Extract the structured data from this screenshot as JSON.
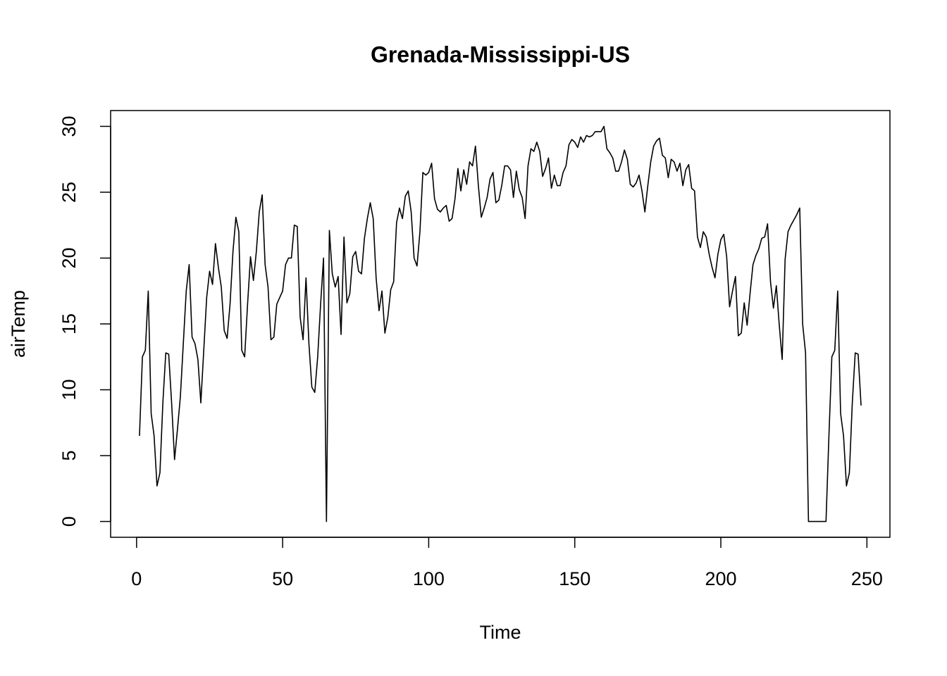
{
  "chart_data": {
    "type": "line",
    "title": "Grenada-Mississippi-US",
    "x_label": "Time",
    "y_label": "airTemp",
    "x": [
      1,
      2,
      3,
      4,
      5,
      6,
      7,
      8,
      9,
      10,
      11,
      12,
      13,
      14,
      15,
      16,
      17,
      18,
      19,
      20,
      21,
      22,
      23,
      24,
      25,
      26,
      27,
      28,
      29,
      30,
      31,
      32,
      33,
      34,
      35,
      36,
      37,
      38,
      39,
      40,
      41,
      42,
      43,
      44,
      45,
      46,
      47,
      48,
      49,
      50,
      51,
      52,
      53,
      54,
      55,
      56,
      57,
      58,
      59,
      60,
      61,
      62,
      63,
      64,
      65,
      66,
      67,
      68,
      69,
      70,
      71,
      72,
      73,
      74,
      75,
      76,
      77,
      78,
      79,
      80,
      81,
      82,
      83,
      84,
      85,
      86,
      87,
      88,
      89,
      90,
      91,
      92,
      93,
      94,
      95,
      96,
      97,
      98,
      99,
      100,
      101,
      102,
      103,
      104,
      105,
      106,
      107,
      108,
      109,
      110,
      111,
      112,
      113,
      114,
      115,
      116,
      117,
      118,
      119,
      120,
      121,
      122,
      123,
      124,
      125,
      126,
      127,
      128,
      129,
      130,
      131,
      132,
      133,
      134,
      135,
      136,
      137,
      138,
      139,
      140,
      141,
      142,
      143,
      144,
      145,
      146,
      147,
      148,
      149,
      150,
      151,
      152,
      153,
      154,
      155,
      156,
      157,
      158,
      159,
      160,
      161,
      162,
      163,
      164,
      165,
      166,
      167,
      168,
      169,
      170,
      171,
      172,
      173,
      174,
      175,
      176,
      177,
      178,
      179,
      180,
      181,
      182,
      183,
      184,
      185,
      186,
      187,
      188,
      189,
      190,
      191,
      192,
      193,
      194,
      195,
      196,
      197,
      198,
      199,
      200,
      201,
      202,
      203,
      204,
      205,
      206,
      207,
      208,
      209,
      210,
      211,
      212,
      213,
      214,
      215,
      216,
      217,
      218,
      219,
      220,
      221,
      222,
      223,
      224,
      225,
      226,
      227,
      228,
      229,
      230,
      231,
      232,
      233,
      234,
      235,
      236,
      237,
      238,
      239,
      240,
      241,
      242,
      243,
      244,
      245,
      246,
      247,
      248
    ],
    "values": [
      6.5,
      12.5,
      13,
      17.5,
      8.2,
      6.5,
      2.7,
      3.7,
      9,
      12.8,
      12.7,
      9,
      4.7,
      7,
      9.5,
      13.5,
      17.5,
      19.5,
      14,
      13.5,
      12.3,
      9,
      13,
      17,
      19,
      18,
      21.1,
      19.3,
      17.8,
      14.5,
      13.9,
      16.5,
      20.5,
      23.1,
      22,
      13,
      12.5,
      16.5,
      20.1,
      18.3,
      20.5,
      23.5,
      24.8,
      19.5,
      17.8,
      13.8,
      14,
      16.5,
      17,
      17.5,
      19.5,
      20,
      20,
      22.5,
      22.4,
      15.5,
      13.8,
      18.5,
      13.5,
      10.2,
      9.8,
      12.5,
      16.5,
      20,
      0,
      22.1,
      18.8,
      17.8,
      18.6,
      14.2,
      21.6,
      16.6,
      17.3,
      20.1,
      20.5,
      19,
      18.8,
      21.5,
      23,
      24.2,
      23,
      18.5,
      16,
      17.5,
      14.3,
      15.5,
      17.6,
      18.2,
      22.7,
      23.8,
      23,
      24.7,
      25.1,
      23.5,
      20,
      19.4,
      22,
      26.5,
      26.3,
      26.5,
      27.2,
      24.5,
      23.7,
      23.5,
      23.8,
      24,
      22.8,
      23,
      24.5,
      26.8,
      25.1,
      26.7,
      25.6,
      27.3,
      27,
      28.5,
      25.5,
      23.1,
      23.8,
      24.6,
      26,
      26.5,
      24.2,
      24.4,
      25.5,
      27,
      27,
      26.7,
      24.6,
      26.6,
      25.2,
      24.6,
      23,
      27,
      28.3,
      28.1,
      28.8,
      28.1,
      26.2,
      26.8,
      27.6,
      25.3,
      26.3,
      25.5,
      25.5,
      26.5,
      27,
      28.6,
      29,
      28.8,
      28.4,
      29.2,
      28.8,
      29.3,
      29.2,
      29.3,
      29.6,
      29.6,
      29.6,
      30,
      28.3,
      28,
      27.6,
      26.6,
      26.6,
      27.3,
      28.2,
      27.5,
      25.6,
      25.4,
      25.7,
      26.3,
      25.1,
      23.5,
      25.5,
      27.3,
      28.5,
      28.9,
      29.1,
      27.8,
      27.6,
      26.1,
      27.5,
      27.3,
      26.6,
      27.2,
      25.5,
      26.7,
      27.1,
      25.3,
      25.1,
      21.6,
      20.8,
      22,
      21.6,
      20.3,
      19.3,
      18.5,
      20.3,
      21.4,
      21.8,
      20.1,
      16.3,
      17.5,
      18.6,
      14.1,
      14.3,
      16.6,
      14.9,
      17.3,
      19.5,
      20.2,
      20.7,
      21.5,
      21.6,
      22.6,
      18.2,
      16.2,
      17.9,
      14.9,
      12.3,
      19.9,
      22,
      22.5,
      22.9,
      23.3,
      23.8,
      15,
      12.8,
      0,
      0,
      0,
      0,
      0,
      0,
      0,
      6.5,
      12.5,
      13,
      17.5,
      8.2,
      6.5,
      2.7,
      3.7,
      9,
      12.8,
      12.7,
      8.8
    ],
    "color": "#000000",
    "xlim": [
      -8.88,
      257.88
    ],
    "xticks": [
      0,
      50,
      100,
      150,
      200,
      250
    ],
    "ylim": [
      -1.2,
      31.2
    ],
    "yticks": [
      0,
      5,
      10,
      15,
      20,
      25,
      30
    ]
  }
}
